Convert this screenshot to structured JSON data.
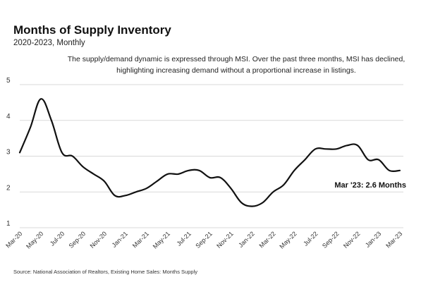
{
  "chart_data": {
    "type": "line",
    "title": "Months of Supply Inventory",
    "subtitle": "2020-2023, Monthly",
    "annotation_lines": [
      "The supply/demand dynamic is expressed through MSI. Over the past three months, MSI has declined,",
      "highlighting increasing demand without a proportional increase in listings."
    ],
    "source": "Source: National Association of Realtors, Existing Home Sales: Months Supply",
    "last_label": "Mar '23: 2.6 Months",
    "ylim": [
      1,
      5
    ],
    "yticks": [
      "1",
      "2",
      "3",
      "4",
      "5"
    ],
    "grid": true,
    "line_color": "#111111",
    "grid_color": "#d9d9d9",
    "x_tick_labels": [
      "Mar-20",
      "May-20",
      "Jul-20",
      "Sep-20",
      "Nov-20",
      "Jan-21",
      "Mar-21",
      "May-21",
      "Jul-21",
      "Sep-21",
      "Nov-21",
      "Jan-22",
      "Mar-22",
      "May-22",
      "Jul-22",
      "Sep-22",
      "Nov-22",
      "Jan-23",
      "Mar-23"
    ],
    "x": [
      "Mar-20",
      "Apr-20",
      "May-20",
      "Jun-20",
      "Jul-20",
      "Aug-20",
      "Sep-20",
      "Oct-20",
      "Nov-20",
      "Dec-20",
      "Jan-21",
      "Feb-21",
      "Mar-21",
      "Apr-21",
      "May-21",
      "Jun-21",
      "Jul-21",
      "Aug-21",
      "Sep-21",
      "Oct-21",
      "Nov-21",
      "Dec-21",
      "Jan-22",
      "Feb-22",
      "Mar-22",
      "Apr-22",
      "May-22",
      "Jun-22",
      "Jul-22",
      "Aug-22",
      "Sep-22",
      "Oct-22",
      "Nov-22",
      "Dec-22",
      "Jan-23",
      "Feb-23",
      "Mar-23"
    ],
    "values": [
      3.1,
      3.8,
      4.6,
      4.0,
      3.1,
      3.0,
      2.7,
      2.5,
      2.3,
      1.9,
      1.9,
      2.0,
      2.1,
      2.3,
      2.5,
      2.5,
      2.6,
      2.6,
      2.4,
      2.4,
      2.1,
      1.7,
      1.6,
      1.7,
      2.0,
      2.2,
      2.6,
      2.9,
      3.2,
      3.2,
      3.2,
      3.3,
      3.3,
      2.9,
      2.9,
      2.6,
      2.6
    ]
  }
}
